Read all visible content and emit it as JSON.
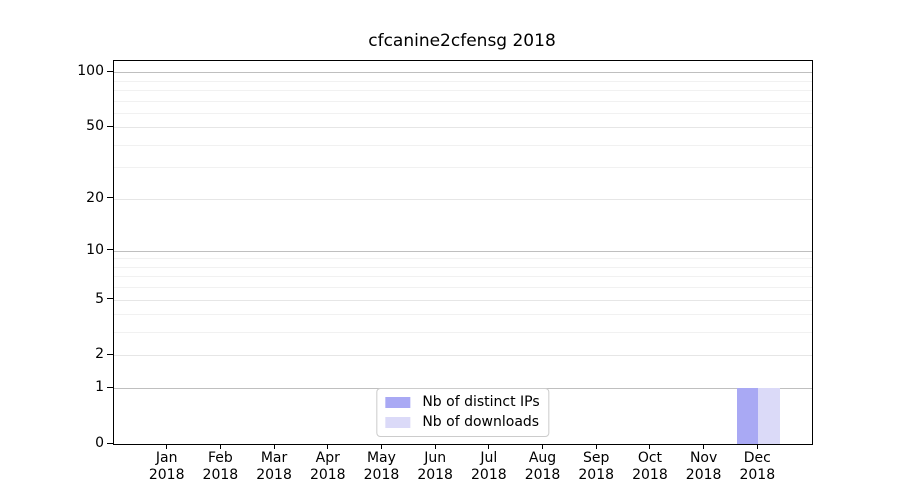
{
  "title": "cfcanine2cfensg 2018",
  "chart_data": {
    "type": "bar",
    "categories": [
      "Jan",
      "Feb",
      "Mar",
      "Apr",
      "May",
      "Jun",
      "Jul",
      "Aug",
      "Sep",
      "Oct",
      "Nov",
      "Dec"
    ],
    "category_year": "2018",
    "series": [
      {
        "name": "Nb of distinct IPs",
        "color": "#a9a9f4",
        "values": [
          0,
          0,
          0,
          0,
          0,
          0,
          0,
          0,
          0,
          0,
          0,
          1
        ]
      },
      {
        "name": "Nb of downloads",
        "color": "#dbdaf8",
        "values": [
          0,
          0,
          0,
          0,
          0,
          0,
          0,
          0,
          0,
          0,
          0,
          1
        ]
      }
    ],
    "title": "cfcanine2cfensg 2018",
    "xlabel": "",
    "ylabel": "",
    "yscale": "log1p",
    "ylim": [
      0,
      115
    ],
    "yticks_major": [
      0,
      1,
      2,
      5,
      10,
      20,
      50,
      100
    ],
    "yticks_minor": [
      3,
      4,
      6,
      7,
      8,
      9,
      30,
      40,
      60,
      70,
      80,
      90
    ],
    "grid": true,
    "legend_position": "lower center"
  },
  "colors": {
    "decade_grid": "#bfbfbf",
    "major_grid": "#e6e6e6",
    "minor_grid": "#f1f1f1",
    "axis": "#000000",
    "background": "#ffffff",
    "legend_border": "#cccccc"
  }
}
